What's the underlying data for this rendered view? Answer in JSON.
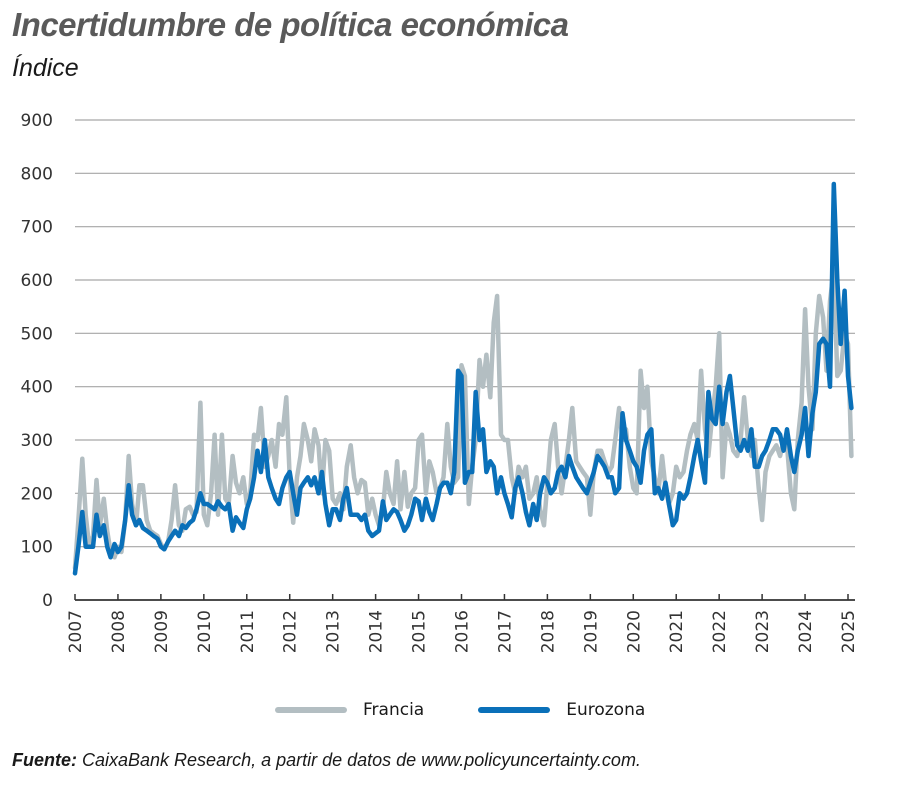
{
  "header": {
    "title": "Incertidumbre de política económica",
    "subtitle": "Índice"
  },
  "legend": [
    {
      "label": "Francia",
      "color": "#b3bec2"
    },
    {
      "label": "Eurozona",
      "color": "#0a70b9"
    }
  ],
  "footer": {
    "source_label": "Fuente:",
    "source_text": " CaixaBank Research, a partir de datos de www.policyuncertainty.com."
  },
  "chart_data": {
    "type": "line",
    "title": "Incertidumbre de política económica",
    "subtitle": "Índice",
    "xlabel": "",
    "ylabel": "Índice",
    "ylim": [
      0,
      900
    ],
    "yticks": [
      0,
      100,
      200,
      300,
      400,
      500,
      600,
      700,
      800,
      900
    ],
    "xticks": [
      "2007",
      "2008",
      "2009",
      "2010",
      "2011",
      "2012",
      "2013",
      "2014",
      "2015",
      "2016",
      "2017",
      "2018",
      "2019",
      "2020",
      "2021",
      "2022",
      "2023",
      "2024",
      "2025"
    ],
    "xlim": [
      2007,
      2025.1
    ],
    "grid": "horizontal",
    "legend_position": "bottom",
    "series": [
      {
        "name": "Francia",
        "color": "#b3bec2",
        "x": [
          2007.0,
          2007.08,
          2007.17,
          2007.25,
          2007.33,
          2007.42,
          2007.5,
          2007.58,
          2007.67,
          2007.75,
          2007.83,
          2007.92,
          2008.0,
          2008.08,
          2008.17,
          2008.25,
          2008.33,
          2008.42,
          2008.5,
          2008.58,
          2008.67,
          2008.75,
          2008.83,
          2008.92,
          2009.0,
          2009.08,
          2009.17,
          2009.25,
          2009.33,
          2009.42,
          2009.5,
          2009.58,
          2009.67,
          2009.75,
          2009.83,
          2009.92,
          2010.0,
          2010.08,
          2010.17,
          2010.25,
          2010.33,
          2010.42,
          2010.5,
          2010.58,
          2010.67,
          2010.75,
          2010.83,
          2010.92,
          2011.0,
          2011.08,
          2011.17,
          2011.25,
          2011.33,
          2011.42,
          2011.5,
          2011.58,
          2011.67,
          2011.75,
          2011.83,
          2011.92,
          2012.0,
          2012.08,
          2012.17,
          2012.25,
          2012.33,
          2012.42,
          2012.5,
          2012.58,
          2012.67,
          2012.75,
          2012.83,
          2012.92,
          2013.0,
          2013.08,
          2013.17,
          2013.25,
          2013.33,
          2013.42,
          2013.5,
          2013.58,
          2013.67,
          2013.75,
          2013.83,
          2013.92,
          2014.0,
          2014.08,
          2014.17,
          2014.25,
          2014.33,
          2014.42,
          2014.5,
          2014.58,
          2014.67,
          2014.75,
          2014.83,
          2014.92,
          2015.0,
          2015.08,
          2015.17,
          2015.25,
          2015.33,
          2015.42,
          2015.5,
          2015.58,
          2015.67,
          2015.75,
          2015.83,
          2015.92,
          2016.0,
          2016.08,
          2016.17,
          2016.25,
          2016.33,
          2016.42,
          2016.5,
          2016.58,
          2016.67,
          2016.75,
          2016.83,
          2016.92,
          2017.0,
          2017.08,
          2017.17,
          2017.25,
          2017.33,
          2017.42,
          2017.5,
          2017.58,
          2017.67,
          2017.75,
          2017.83,
          2017.92,
          2018.0,
          2018.08,
          2018.17,
          2018.25,
          2018.33,
          2018.42,
          2018.5,
          2018.58,
          2018.67,
          2018.75,
          2018.83,
          2018.92,
          2019.0,
          2019.08,
          2019.17,
          2019.25,
          2019.33,
          2019.42,
          2019.5,
          2019.58,
          2019.67,
          2019.75,
          2019.83,
          2019.92,
          2020.0,
          2020.08,
          2020.17,
          2020.25,
          2020.33,
          2020.42,
          2020.5,
          2020.58,
          2020.67,
          2020.75,
          2020.83,
          2020.92,
          2021.0,
          2021.08,
          2021.17,
          2021.25,
          2021.33,
          2021.42,
          2021.5,
          2021.58,
          2021.67,
          2021.75,
          2021.83,
          2021.92,
          2022.0,
          2022.08,
          2022.17,
          2022.25,
          2022.33,
          2022.42,
          2022.5,
          2022.58,
          2022.67,
          2022.75,
          2022.83,
          2022.92,
          2023.0,
          2023.08,
          2023.17,
          2023.25,
          2023.33,
          2023.42,
          2023.5,
          2023.58,
          2023.67,
          2023.75,
          2023.83,
          2023.92,
          2024.0,
          2024.08,
          2024.17,
          2024.25,
          2024.33,
          2024.42,
          2024.5,
          2024.58,
          2024.67,
          2024.75,
          2024.83,
          2024.92,
          2025.0,
          2025.08
        ],
        "values": [
          60,
          150,
          265,
          160,
          100,
          120,
          225,
          140,
          190,
          130,
          90,
          80,
          100,
          90,
          150,
          270,
          180,
          140,
          215,
          215,
          150,
          130,
          125,
          120,
          105,
          95,
          110,
          150,
          215,
          140,
          130,
          170,
          175,
          160,
          165,
          370,
          160,
          140,
          200,
          310,
          160,
          310,
          190,
          180,
          270,
          220,
          200,
          230,
          180,
          200,
          310,
          300,
          360,
          250,
          270,
          300,
          250,
          330,
          310,
          380,
          230,
          145,
          230,
          270,
          330,
          300,
          260,
          320,
          290,
          200,
          300,
          280,
          190,
          180,
          200,
          170,
          250,
          290,
          230,
          200,
          225,
          220,
          160,
          190,
          160,
          140,
          170,
          240,
          200,
          180,
          260,
          170,
          240,
          175,
          200,
          210,
          300,
          310,
          200,
          260,
          240,
          200,
          210,
          230,
          330,
          250,
          220,
          230,
          440,
          420,
          180,
          250,
          300,
          450,
          400,
          460,
          380,
          520,
          570,
          310,
          300,
          300,
          230,
          200,
          250,
          230,
          250,
          190,
          200,
          230,
          170,
          140,
          220,
          300,
          330,
          250,
          200,
          250,
          300,
          360,
          260,
          250,
          240,
          230,
          160,
          240,
          280,
          280,
          260,
          240,
          250,
          300,
          360,
          300,
          320,
          250,
          210,
          200,
          430,
          360,
          400,
          260,
          230,
          200,
          270,
          210,
          180,
          200,
          250,
          230,
          240,
          280,
          310,
          330,
          300,
          430,
          320,
          270,
          340,
          400,
          500,
          230,
          330,
          310,
          280,
          270,
          300,
          380,
          300,
          270,
          300,
          210,
          150,
          240,
          270,
          280,
          290,
          270,
          300,
          290,
          200,
          170,
          300,
          370,
          545,
          400,
          320,
          500,
          570,
          530,
          430,
          560,
          620,
          420,
          430,
          500,
          480,
          270
        ]
      },
      {
        "name": "Eurozona",
        "color": "#0a70b9",
        "x": [
          2007.0,
          2007.08,
          2007.17,
          2007.25,
          2007.33,
          2007.42,
          2007.5,
          2007.58,
          2007.67,
          2007.75,
          2007.83,
          2007.92,
          2008.0,
          2008.08,
          2008.17,
          2008.25,
          2008.33,
          2008.42,
          2008.5,
          2008.58,
          2008.67,
          2008.75,
          2008.83,
          2008.92,
          2009.0,
          2009.08,
          2009.17,
          2009.25,
          2009.33,
          2009.42,
          2009.5,
          2009.58,
          2009.67,
          2009.75,
          2009.83,
          2009.92,
          2010.0,
          2010.08,
          2010.17,
          2010.25,
          2010.33,
          2010.42,
          2010.5,
          2010.58,
          2010.67,
          2010.75,
          2010.83,
          2010.92,
          2011.0,
          2011.08,
          2011.17,
          2011.25,
          2011.33,
          2011.42,
          2011.5,
          2011.58,
          2011.67,
          2011.75,
          2011.83,
          2011.92,
          2012.0,
          2012.08,
          2012.17,
          2012.25,
          2012.33,
          2012.42,
          2012.5,
          2012.58,
          2012.67,
          2012.75,
          2012.83,
          2012.92,
          2013.0,
          2013.08,
          2013.17,
          2013.25,
          2013.33,
          2013.42,
          2013.5,
          2013.58,
          2013.67,
          2013.75,
          2013.83,
          2013.92,
          2014.0,
          2014.08,
          2014.17,
          2014.25,
          2014.33,
          2014.42,
          2014.5,
          2014.58,
          2014.67,
          2014.75,
          2014.83,
          2014.92,
          2015.0,
          2015.08,
          2015.17,
          2015.25,
          2015.33,
          2015.42,
          2015.5,
          2015.58,
          2015.67,
          2015.75,
          2015.83,
          2015.92,
          2016.0,
          2016.08,
          2016.17,
          2016.25,
          2016.33,
          2016.42,
          2016.5,
          2016.58,
          2016.67,
          2016.75,
          2016.83,
          2016.92,
          2017.0,
          2017.08,
          2017.17,
          2017.25,
          2017.33,
          2017.42,
          2017.5,
          2017.58,
          2017.67,
          2017.75,
          2017.83,
          2017.92,
          2018.0,
          2018.08,
          2018.17,
          2018.25,
          2018.33,
          2018.42,
          2018.5,
          2018.58,
          2018.67,
          2018.75,
          2018.83,
          2018.92,
          2019.0,
          2019.08,
          2019.17,
          2019.25,
          2019.33,
          2019.42,
          2019.5,
          2019.58,
          2019.67,
          2019.75,
          2019.83,
          2019.92,
          2020.0,
          2020.08,
          2020.17,
          2020.25,
          2020.33,
          2020.42,
          2020.5,
          2020.58,
          2020.67,
          2020.75,
          2020.83,
          2020.92,
          2021.0,
          2021.08,
          2021.17,
          2021.25,
          2021.33,
          2021.42,
          2021.5,
          2021.58,
          2021.67,
          2021.75,
          2021.83,
          2021.92,
          2022.0,
          2022.08,
          2022.17,
          2022.25,
          2022.33,
          2022.42,
          2022.5,
          2022.58,
          2022.67,
          2022.75,
          2022.83,
          2022.92,
          2023.0,
          2023.08,
          2023.17,
          2023.25,
          2023.33,
          2023.42,
          2023.5,
          2023.58,
          2023.67,
          2023.75,
          2023.83,
          2023.92,
          2024.0,
          2024.08,
          2024.17,
          2024.25,
          2024.33,
          2024.42,
          2024.5,
          2024.58,
          2024.67,
          2024.75,
          2024.83,
          2024.92,
          2025.0,
          2025.08
        ],
        "values": [
          50,
          100,
          165,
          100,
          100,
          100,
          160,
          120,
          140,
          100,
          80,
          105,
          90,
          100,
          150,
          215,
          160,
          140,
          150,
          135,
          130,
          125,
          120,
          115,
          100,
          95,
          110,
          120,
          130,
          120,
          140,
          135,
          145,
          150,
          170,
          200,
          180,
          180,
          175,
          170,
          185,
          175,
          170,
          180,
          130,
          155,
          145,
          135,
          170,
          190,
          230,
          280,
          240,
          300,
          230,
          210,
          190,
          180,
          210,
          230,
          240,
          200,
          160,
          210,
          220,
          230,
          215,
          230,
          200,
          240,
          180,
          140,
          170,
          170,
          150,
          190,
          210,
          160,
          160,
          160,
          150,
          160,
          130,
          120,
          125,
          130,
          185,
          150,
          160,
          170,
          165,
          150,
          130,
          140,
          160,
          190,
          185,
          150,
          190,
          165,
          150,
          180,
          210,
          220,
          220,
          200,
          240,
          430,
          420,
          220,
          240,
          240,
          390,
          300,
          320,
          240,
          260,
          250,
          200,
          230,
          200,
          180,
          155,
          210,
          230,
          200,
          165,
          140,
          180,
          150,
          200,
          230,
          220,
          200,
          210,
          240,
          250,
          230,
          270,
          250,
          230,
          220,
          210,
          200,
          220,
          240,
          270,
          260,
          250,
          230,
          230,
          200,
          210,
          350,
          300,
          280,
          260,
          250,
          220,
          280,
          310,
          320,
          200,
          210,
          190,
          220,
          180,
          140,
          150,
          200,
          190,
          200,
          230,
          270,
          300,
          260,
          220,
          390,
          340,
          330,
          400,
          330,
          390,
          420,
          360,
          290,
          280,
          300,
          280,
          320,
          250,
          250,
          270,
          280,
          300,
          320,
          320,
          310,
          280,
          320,
          270,
          240,
          280,
          310,
          360,
          270,
          350,
          390,
          480,
          490,
          480,
          400,
          780,
          600,
          480,
          580,
          420,
          360
        ]
      }
    ]
  }
}
